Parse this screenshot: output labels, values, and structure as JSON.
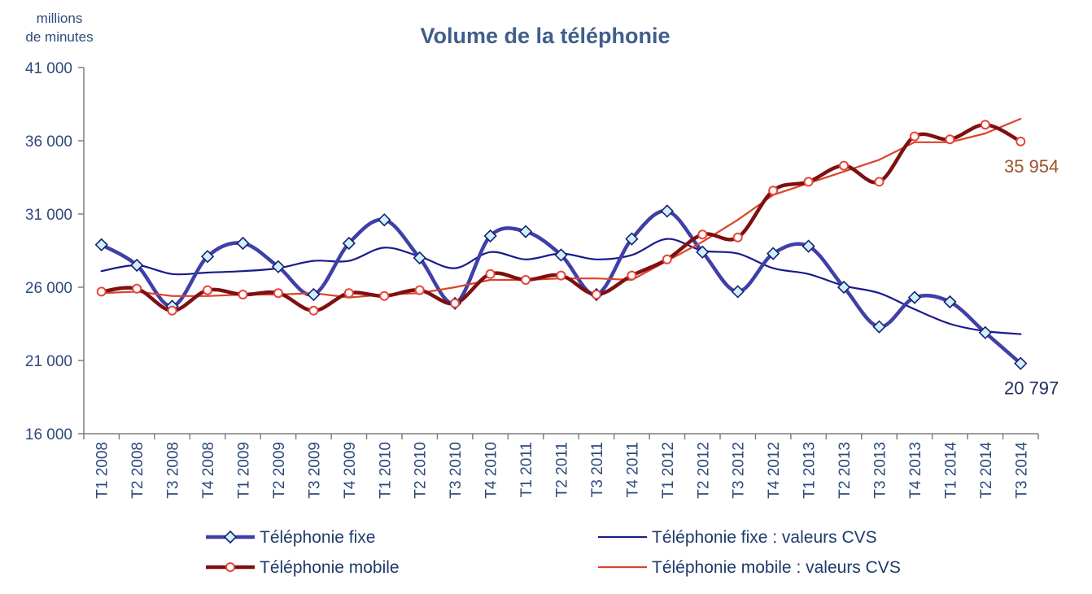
{
  "chart_data": {
    "type": "line",
    "title": "Volume de la téléphonie",
    "ylabel_line1": "millions",
    "ylabel_line2": "de minutes",
    "ylim": [
      16000,
      41000
    ],
    "yticks": [
      16000,
      21000,
      26000,
      31000,
      36000,
      41000
    ],
    "ytick_labels": [
      "16 000",
      "21 000",
      "26 000",
      "31 000",
      "36 000",
      "41 000"
    ],
    "grid": false,
    "legend_position": "bottom",
    "categories": [
      "T1 2008",
      "T2 2008",
      "T3 2008",
      "T4 2008",
      "T1 2009",
      "T2 2009",
      "T3 2009",
      "T4 2009",
      "T1 2010",
      "T2 2010",
      "T3 2010",
      "T4 2010",
      "T1 2011",
      "T2 2011",
      "T3 2011",
      "T4 2011",
      "T1 2012",
      "T2 2012",
      "T3 2012",
      "T4 2012",
      "T1 2013",
      "T2 2013",
      "T3 2013",
      "T4 2013",
      "T1 2014",
      "T2 2014",
      "T3 2014"
    ],
    "series": [
      {
        "name": "Téléphonie fixe",
        "color": "#3F3FA8",
        "marker": "diamond",
        "smooth": true,
        "values": [
          28900,
          27500,
          24700,
          28100,
          29000,
          27400,
          25500,
          29000,
          30600,
          28000,
          24900,
          29500,
          29800,
          28200,
          25500,
          29300,
          31200,
          28400,
          25700,
          28300,
          28800,
          26000,
          23300,
          25300,
          25000,
          22900,
          20797
        ]
      },
      {
        "name": "Téléphonie fixe : valeurs CVS",
        "color": "#1A1A8C",
        "marker": "none",
        "smooth": true,
        "values": [
          27100,
          27500,
          26900,
          27000,
          27100,
          27300,
          27800,
          27800,
          28700,
          28100,
          27300,
          28400,
          27900,
          28300,
          27900,
          28200,
          29300,
          28500,
          28300,
          27300,
          26900,
          26100,
          25600,
          24500,
          23500,
          23000,
          22800
        ]
      },
      {
        "name": "Téléphonie mobile",
        "color": "#7F1010",
        "marker": "circle",
        "smooth": true,
        "values": [
          25700,
          25900,
          24400,
          25800,
          25500,
          25600,
          24400,
          25600,
          25400,
          25800,
          24900,
          26900,
          26500,
          26800,
          25500,
          26800,
          27900,
          29600,
          29400,
          32600,
          33200,
          34300,
          33200,
          36300,
          36100,
          37100,
          35954
        ]
      },
      {
        "name": "Téléphonie mobile : valeurs CVS",
        "color": "#D9442A",
        "marker": "none",
        "smooth": false,
        "values": [
          25600,
          25700,
          25400,
          25400,
          25500,
          25500,
          25600,
          25300,
          25500,
          25600,
          26000,
          26500,
          26500,
          26600,
          26600,
          26500,
          27800,
          29100,
          30600,
          32300,
          33100,
          33900,
          34700,
          35900,
          35900,
          36500,
          37500
        ]
      }
    ],
    "end_labels": [
      {
        "series": "Téléphonie mobile",
        "text": "35 954",
        "color": "#A0522D"
      },
      {
        "series": "Téléphonie fixe",
        "text": "20 797",
        "color": "#1F3060"
      }
    ]
  }
}
